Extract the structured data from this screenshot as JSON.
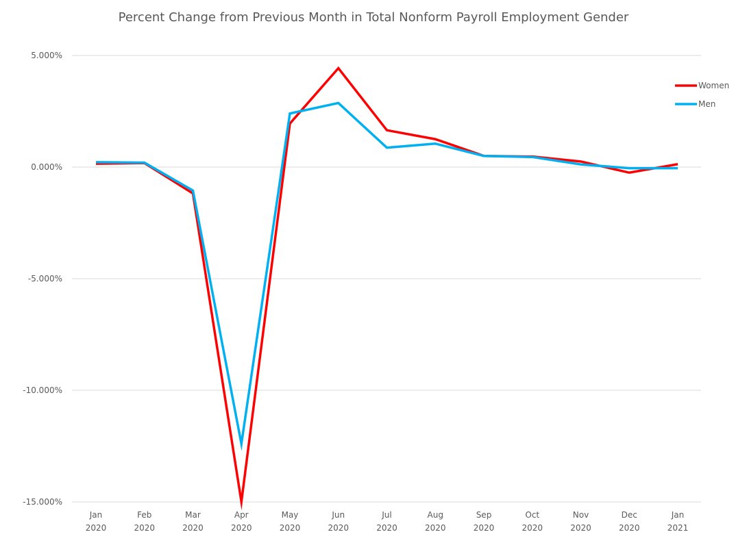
{
  "chart_data": {
    "type": "line",
    "title": "Percent Change from Previous Month in Total Nonform Payroll Employment Gender",
    "xlabel": "",
    "ylabel": "",
    "ylim": [
      -15,
      5
    ],
    "y_ticks": [
      5,
      0,
      -5,
      -10,
      -15
    ],
    "y_tick_labels": [
      "5.000%",
      "0.000%",
      "-5.000%",
      "-10.000%",
      "-15.000%"
    ],
    "grid": true,
    "legend_position": "right",
    "categories": [
      [
        "Jan",
        "2020"
      ],
      [
        "Feb",
        "2020"
      ],
      [
        "Mar",
        "2020"
      ],
      [
        "Apr",
        "2020"
      ],
      [
        "May",
        "2020"
      ],
      [
        "Jun",
        "2020"
      ],
      [
        "Jul",
        "2020"
      ],
      [
        "Aug",
        "2020"
      ],
      [
        "Sep",
        "2020"
      ],
      [
        "Oct",
        "2020"
      ],
      [
        "Nov",
        "2020"
      ],
      [
        "Dec",
        "2020"
      ],
      [
        "Jan",
        "2021"
      ]
    ],
    "series": [
      {
        "name": "Women",
        "color": "#ff0000",
        "values": [
          0.15,
          0.18,
          -1.18,
          -15.0,
          1.95,
          4.43,
          1.65,
          1.25,
          0.5,
          0.47,
          0.25,
          -0.25,
          0.13
        ]
      },
      {
        "name": "Men",
        "color": "#00b0f0",
        "values": [
          0.22,
          0.2,
          -1.05,
          -12.4,
          2.4,
          2.87,
          0.87,
          1.05,
          0.5,
          0.45,
          0.12,
          -0.05,
          -0.05
        ]
      }
    ]
  }
}
